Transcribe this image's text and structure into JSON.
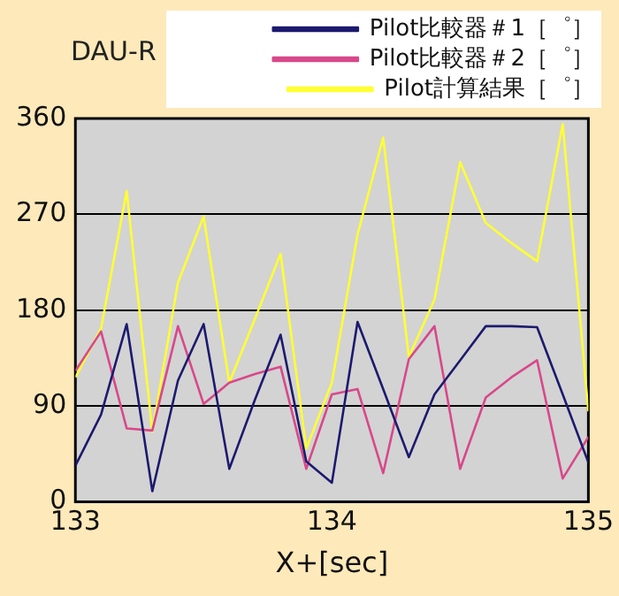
{
  "chart_data": {
    "type": "line",
    "title": "DAU-R",
    "xlabel": "X+[sec]",
    "x": [
      133.0,
      133.1,
      133.2,
      133.3,
      133.4,
      133.5,
      133.6,
      133.7,
      133.8,
      133.9,
      134.0,
      134.1,
      134.2,
      134.3,
      134.4,
      134.5,
      134.6,
      134.7,
      134.8,
      134.9,
      135.0
    ],
    "series": [
      {
        "name": "Pilot比較器＃1［゜］",
        "color": "#1c1a6e",
        "values": [
          34,
          82,
          167,
          10,
          114,
          167,
          31,
          96,
          157,
          38,
          18,
          169,
          106,
          42,
          101,
          133,
          165,
          165,
          164,
          101,
          37
        ]
      },
      {
        "name": "Pilot比較器＃2［゜］",
        "color": "#d8488a",
        "values": [
          123,
          160,
          69,
          67,
          165,
          92,
          112,
          120,
          127,
          31,
          101,
          106,
          27,
          134,
          165,
          31,
          98,
          117,
          133,
          22,
          61
        ]
      },
      {
        "name": "Pilot計算結果［゜］",
        "color": "#ffff33",
        "values": [
          117,
          163,
          292,
          66,
          206,
          268,
          112,
          172,
          233,
          50,
          112,
          251,
          342,
          136,
          190,
          319,
          262,
          243,
          226,
          355,
          85
        ]
      }
    ],
    "xlim": [
      133,
      135
    ],
    "xticks": [
      133,
      134,
      135
    ],
    "ylim": [
      0,
      360
    ],
    "yticks": [
      0,
      90,
      180,
      270,
      360
    ],
    "grid": "y",
    "legend": "top right",
    "marker": "none",
    "line_style": "solid"
  }
}
